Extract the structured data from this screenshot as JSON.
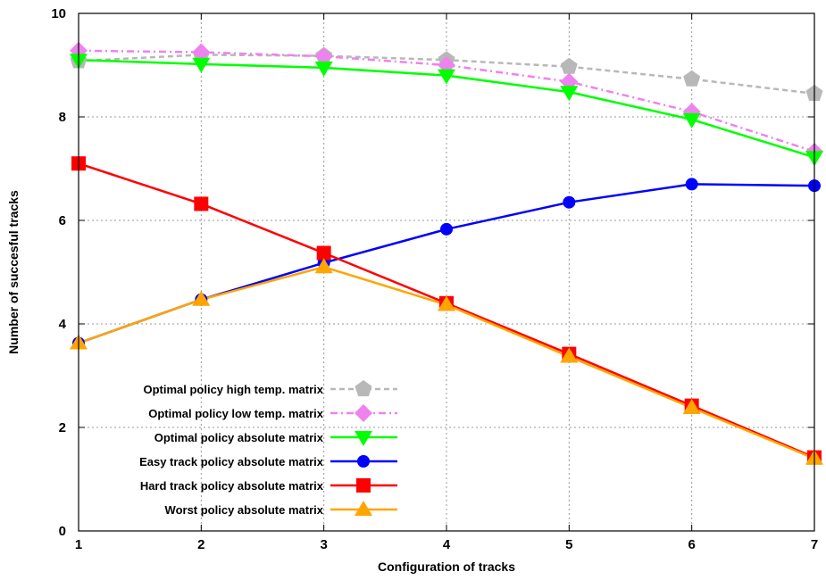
{
  "chart_data": {
    "type": "line",
    "xlabel": "Configuration of tracks",
    "ylabel": "Number of succesful tracks",
    "x": [
      1,
      2,
      3,
      4,
      5,
      6,
      7
    ],
    "xlim": [
      1,
      7
    ],
    "ylim": [
      0,
      10
    ],
    "xticks": [
      1,
      2,
      3,
      4,
      5,
      6,
      7
    ],
    "yticks": [
      0,
      2,
      4,
      6,
      8,
      10
    ],
    "grid": true,
    "legend_position": "bottom-left",
    "series": [
      {
        "name": "Optimal policy high temp. matrix",
        "color": "#b8b8b8",
        "dash": "dashed",
        "marker": "pentagon",
        "values": [
          9.08,
          9.2,
          9.18,
          9.1,
          8.97,
          8.73,
          8.45
        ]
      },
      {
        "name": "Optimal policy low temp. matrix",
        "color": "#ee82ee",
        "dash": "dash-dot",
        "marker": "diamond",
        "values": [
          9.28,
          9.25,
          9.17,
          9.0,
          8.68,
          8.1,
          7.33
        ]
      },
      {
        "name": "Optimal policy absolute matrix",
        "color": "#00ff00",
        "dash": "solid",
        "marker": "triangle-down",
        "values": [
          9.1,
          9.02,
          8.95,
          8.8,
          8.48,
          7.95,
          7.22
        ]
      },
      {
        "name": "Easy track policy absolute matrix",
        "color": "#0000ff",
        "dash": "solid",
        "marker": "circle",
        "values": [
          3.63,
          4.47,
          5.18,
          5.83,
          6.35,
          6.7,
          6.67
        ]
      },
      {
        "name": "Hard track policy absolute matrix",
        "color": "#ff0000",
        "dash": "solid",
        "marker": "square",
        "values": [
          7.1,
          6.32,
          5.37,
          4.4,
          3.42,
          2.42,
          1.42
        ]
      },
      {
        "name": "Worst policy absolute matrix",
        "color": "#ffa500",
        "dash": "solid",
        "marker": "triangle-up",
        "values": [
          3.63,
          4.47,
          5.1,
          4.37,
          3.37,
          2.38,
          1.4
        ]
      }
    ]
  }
}
